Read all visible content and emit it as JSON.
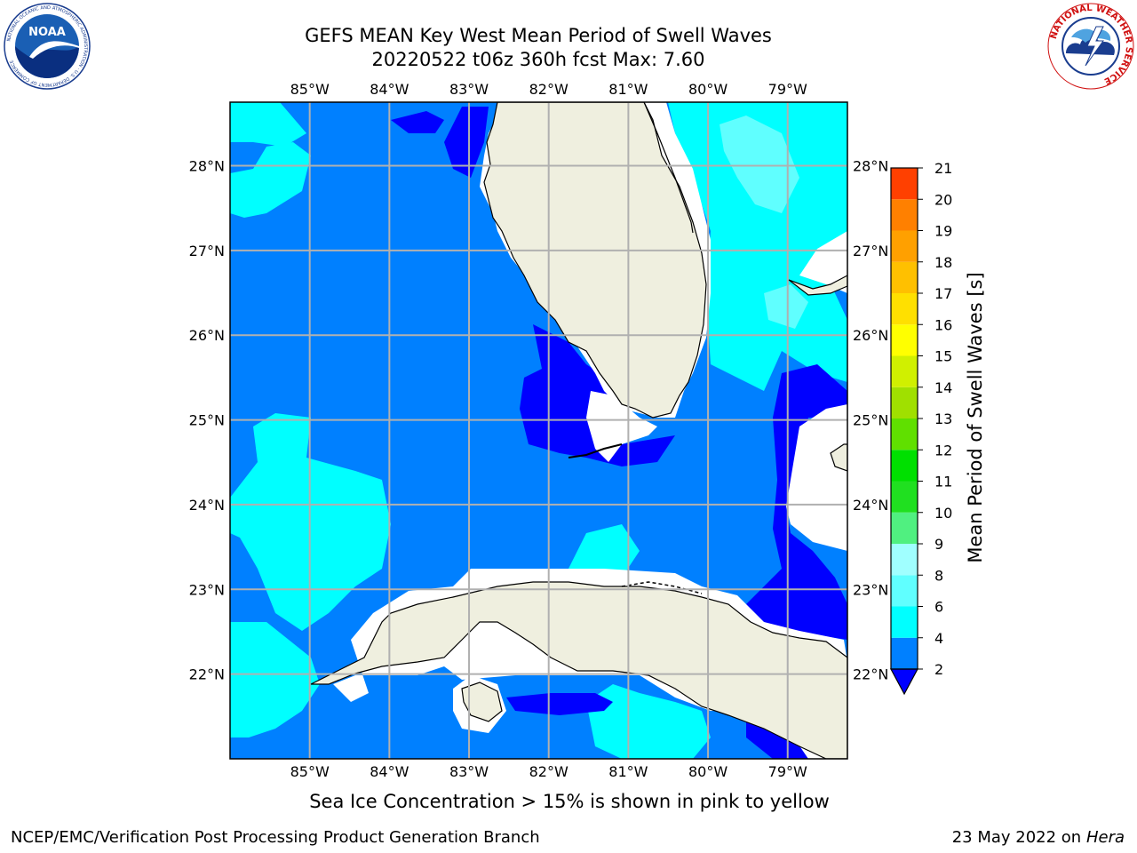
{
  "title": {
    "line1": "GEFS MEAN Key West Mean Period of Swell Waves",
    "line2": "20220522 t06z 360h fcst   Max: 7.60"
  },
  "logos": {
    "left": {
      "icon": "noaa-logo-icon",
      "text": "NOAA",
      "ring_text": "NATIONAL OCEANIC AND ATMOSPHERIC ADMINISTRATION · U.S. DEPARTMENT OF COMMERCE"
    },
    "right": {
      "icon": "nws-logo-icon",
      "ring_text": "NATIONAL WEATHER SERVICE"
    }
  },
  "map": {
    "projection": "lat-lon",
    "lon_range": [
      -86,
      -78.25
    ],
    "lat_range": [
      21,
      28.75
    ],
    "lon_ticks": [
      "85°W",
      "84°W",
      "83°W",
      "82°W",
      "81°W",
      "80°W",
      "79°W"
    ],
    "lon_tick_values": [
      -85,
      -84,
      -83,
      -82,
      -81,
      -80,
      -79
    ],
    "lat_ticks": [
      "28°N",
      "27°N",
      "26°N",
      "25°N",
      "24°N",
      "23°N",
      "22°N"
    ],
    "lat_tick_values": [
      28,
      27,
      26,
      25,
      24,
      23,
      22
    ],
    "grid": true,
    "land_color": "#efefdf",
    "ocean_base_color": "#0080ff"
  },
  "colorbar": {
    "label": "Mean Period of Swell Waves [s]",
    "ticks": [
      "21",
      "20",
      "19",
      "18",
      "17",
      "16",
      "15",
      "14",
      "13",
      "12",
      "11",
      "10",
      "9",
      "8",
      "6",
      "4",
      "2"
    ],
    "levels": [
      2,
      4,
      6,
      8,
      9,
      10,
      11,
      12,
      13,
      14,
      15,
      16,
      17,
      18,
      19,
      20,
      21
    ],
    "colors": [
      "#0080ff",
      "#00ffff",
      "#60ffff",
      "#a0ffff",
      "#50f080",
      "#20e020",
      "#00e000",
      "#60e000",
      "#a0e000",
      "#d0f000",
      "#ffff00",
      "#ffe000",
      "#ffc000",
      "#ffa000",
      "#ff8000",
      "#ff4000",
      "#ff2000",
      "#ff0000"
    ],
    "extend_below_color": "#0000ff",
    "position": "right"
  },
  "footer": {
    "sea_ice_note": "Sea Ice Concentration > 15% is shown in pink to yellow",
    "left": "NCEP/EMC/Verification Post Processing Product Generation Branch",
    "right_date": "23 May 2022 on",
    "right_host": "Hera"
  }
}
